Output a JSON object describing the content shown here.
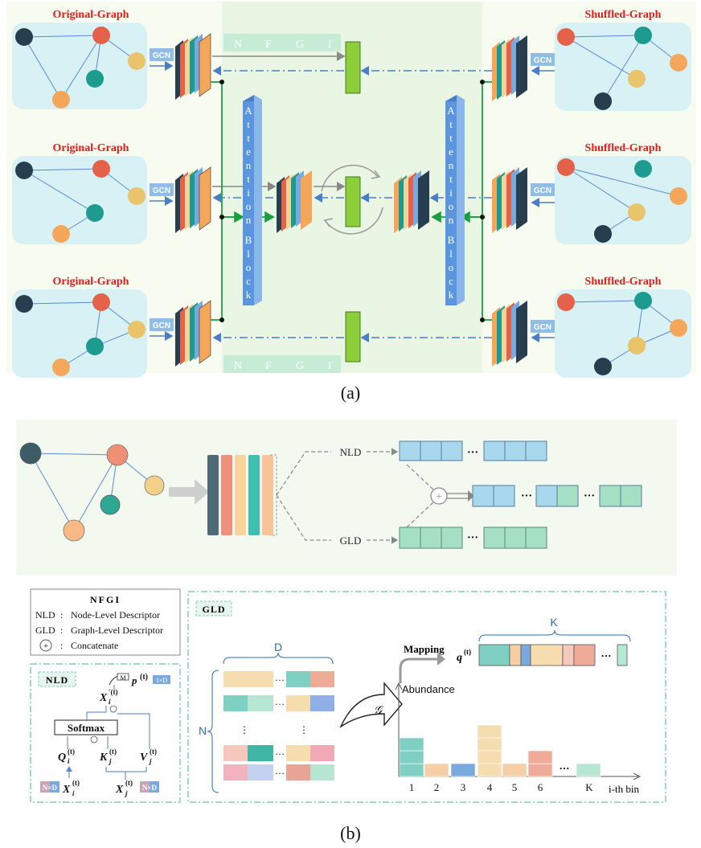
{
  "colors": {
    "graph_bg": "#d8f1f4",
    "panel_bg": "#f4faef",
    "center_bg": "#e7f6e4",
    "node_dark": "#263e4d",
    "node_red": "#e4614a",
    "node_teal": "#1e9b8f",
    "node_orange": "#f4a65b",
    "node_yellow": "#e9c46a",
    "green_bar": "#8dcf3a",
    "attention_blue": "#5b95dd",
    "title_red": "#e01b1b"
  },
  "part_a": {
    "original_graph_label": "Original-Graph",
    "shuffled_graph_label": "Shuffled-Graph",
    "gcn_label": "GCN",
    "nfgi_letters": [
      "N",
      "F",
      "G",
      "I"
    ],
    "attention_letters": [
      "A",
      "t",
      "t",
      "e",
      "n",
      "t",
      "i",
      "o",
      "n",
      "B",
      "l",
      "o",
      "c",
      "k"
    ],
    "caption": "(a)"
  },
  "part_b": {
    "nld_label": "NLD",
    "gld_label": "GLD",
    "ellipsis": "···",
    "caption": "(b)"
  },
  "legend": {
    "title": "NFGI",
    "items": [
      {
        "key": "NLD",
        "sep": ":",
        "text": "Node-Level Descriptor"
      },
      {
        "key": "GLD",
        "sep": ":",
        "text": "Graph-Level Descriptor"
      },
      {
        "key": "+",
        "sep": ":",
        "text": "Concatenate"
      }
    ]
  },
  "nld_panel": {
    "title": "NLD",
    "softmax": "Softmax",
    "mapping_small": "M",
    "p_label": "p",
    "p_sup": "(t)",
    "dim_1xd": "1×D",
    "x_prime": "X",
    "x_prime_sup": "′(t)",
    "x_prime_sub": "i",
    "q": "Q",
    "q_sub": "i",
    "k": "K",
    "k_sub": "j",
    "v": "V",
    "v_sub": "j",
    "sup_t": "(t)",
    "xi": "X",
    "xi_sub": "i",
    "xj": "X",
    "xj_sub": "j",
    "dim_nxd": "N×D"
  },
  "gld_panel": {
    "title": "GLD",
    "d_label": "D",
    "n_label": "N",
    "k_label": "K",
    "script_g": "𝒢",
    "mapping": "Mapping",
    "q_label": "q",
    "q_sup": "(t)",
    "abundance": "Abundance",
    "bin_ticks": [
      "1",
      "2",
      "3",
      "4",
      "5",
      "6",
      "K"
    ],
    "bin_axis": "i-th bin",
    "vdots": "⋮"
  }
}
